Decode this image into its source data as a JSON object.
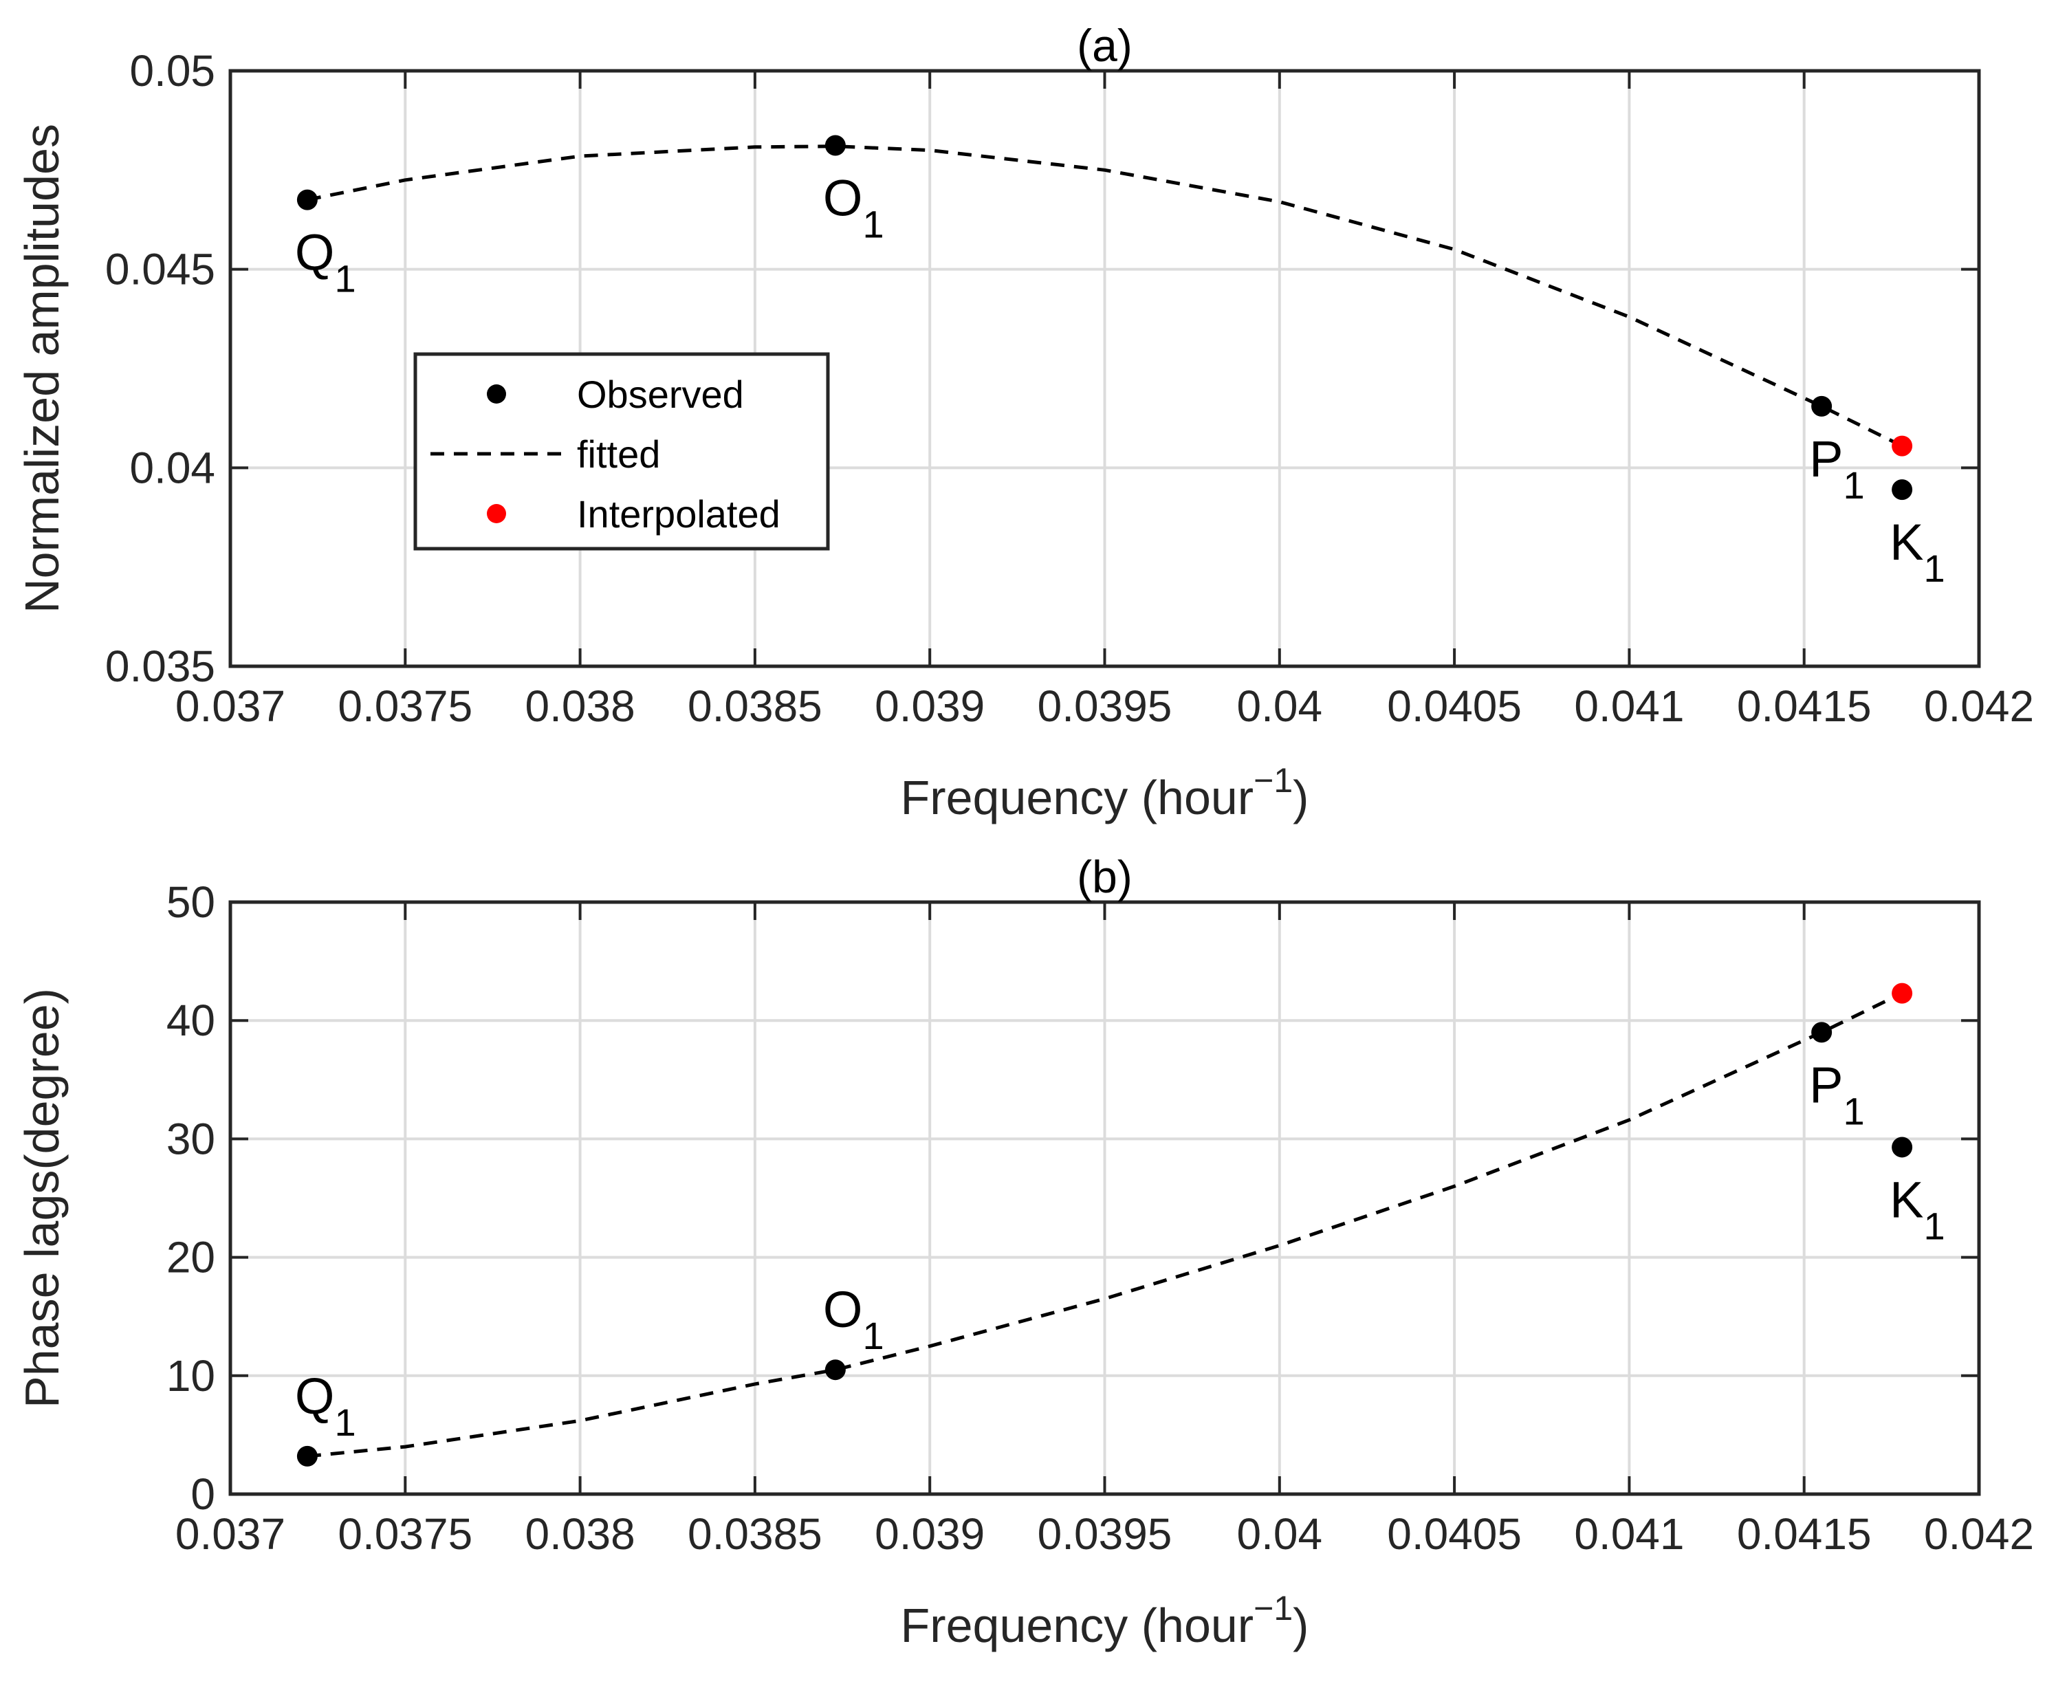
{
  "chart_data": [
    {
      "id": "a",
      "type": "line",
      "title": "(a)",
      "xlabel": "Frequency (hour",
      "xlabel_sup": "−1",
      "xlabel_close": ")",
      "ylabel": "Normalized amplitudes",
      "xlim": [
        0.037,
        0.042
      ],
      "ylim": [
        0.035,
        0.05
      ],
      "xticks": [
        0.037,
        0.0375,
        0.038,
        0.0385,
        0.039,
        0.0395,
        0.04,
        0.0405,
        0.041,
        0.0415,
        0.042
      ],
      "xtick_labels": [
        "0.037",
        "0.0375",
        "0.038",
        "0.0385",
        "0.039",
        "0.0395",
        "0.04",
        "0.0405",
        "0.041",
        "0.0415",
        "0.042"
      ],
      "yticks": [
        0.035,
        0.04,
        0.045,
        0.05
      ],
      "ytick_labels": [
        "0.035",
        "0.04",
        "0.045",
        "0.05"
      ],
      "grid": true,
      "legend": {
        "position": "center-left",
        "entries": [
          {
            "label": "Observed",
            "marker": "dot",
            "color": "#000000"
          },
          {
            "label": "fitted",
            "marker": "dashed-line",
            "color": "#000000"
          },
          {
            "label": "Interpolated",
            "marker": "dot",
            "color": "#ff0000"
          }
        ]
      },
      "series": [
        {
          "name": "Observed",
          "kind": "scatter",
          "color": "#000000",
          "points": [
            {
              "x": 0.03722,
              "y": 0.04675,
              "label": "Q",
              "sub": "1",
              "label_pos": "below"
            },
            {
              "x": 0.03873,
              "y": 0.04812,
              "label": "O",
              "sub": "1",
              "label_pos": "below"
            },
            {
              "x": 0.04155,
              "y": 0.04155,
              "label": "P",
              "sub": "1",
              "label_pos": "below"
            },
            {
              "x": 0.04178,
              "y": 0.03945,
              "label": "K",
              "sub": "1",
              "label_pos": "below"
            }
          ]
        },
        {
          "name": "fitted",
          "kind": "dashed",
          "color": "#000000",
          "x": [
            0.03722,
            0.0375,
            0.038,
            0.0385,
            0.03873,
            0.039,
            0.0395,
            0.04,
            0.0405,
            0.041,
            0.04155,
            0.04178
          ],
          "y": [
            0.04675,
            0.04725,
            0.04785,
            0.04808,
            0.0481,
            0.048,
            0.0475,
            0.0467,
            0.0455,
            0.0438,
            0.04155,
            0.04055
          ]
        },
        {
          "name": "Interpolated",
          "kind": "scatter",
          "color": "#ff0000",
          "points": [
            {
              "x": 0.04178,
              "y": 0.04055
            }
          ]
        }
      ]
    },
    {
      "id": "b",
      "type": "line",
      "title": "(b)",
      "xlabel": "Frequency (hour",
      "xlabel_sup": "−1",
      "xlabel_close": ")",
      "ylabel": "Phase lags(degree)",
      "xlim": [
        0.037,
        0.042
      ],
      "ylim": [
        0,
        50
      ],
      "xticks": [
        0.037,
        0.0375,
        0.038,
        0.0385,
        0.039,
        0.0395,
        0.04,
        0.0405,
        0.041,
        0.0415,
        0.042
      ],
      "xtick_labels": [
        "0.037",
        "0.0375",
        "0.038",
        "0.0385",
        "0.039",
        "0.0395",
        "0.04",
        "0.0405",
        "0.041",
        "0.0415",
        "0.042"
      ],
      "yticks": [
        0,
        10,
        20,
        30,
        40,
        50
      ],
      "ytick_labels": [
        "0",
        "10",
        "20",
        "30",
        "40",
        "50"
      ],
      "grid": true,
      "series": [
        {
          "name": "Observed",
          "kind": "scatter",
          "color": "#000000",
          "points": [
            {
              "x": 0.03722,
              "y": 3.2,
              "label": "Q",
              "sub": "1",
              "label_pos": "above"
            },
            {
              "x": 0.03873,
              "y": 10.5,
              "label": "O",
              "sub": "1",
              "label_pos": "above"
            },
            {
              "x": 0.04155,
              "y": 39.0,
              "label": "P",
              "sub": "1",
              "label_pos": "below"
            },
            {
              "x": 0.04178,
              "y": 29.3,
              "label": "K",
              "sub": "1",
              "label_pos": "below"
            }
          ]
        },
        {
          "name": "fitted",
          "kind": "dashed",
          "color": "#000000",
          "x": [
            0.03722,
            0.0375,
            0.038,
            0.0385,
            0.03873,
            0.039,
            0.0395,
            0.04,
            0.0405,
            0.041,
            0.04155,
            0.04178
          ],
          "y": [
            3.2,
            4.0,
            6.2,
            9.3,
            10.5,
            12.5,
            16.5,
            21.0,
            26.0,
            31.6,
            39.0,
            42.3
          ]
        },
        {
          "name": "Interpolated",
          "kind": "scatter",
          "color": "#ff0000",
          "points": [
            {
              "x": 0.04178,
              "y": 42.3
            }
          ]
        }
      ]
    }
  ]
}
